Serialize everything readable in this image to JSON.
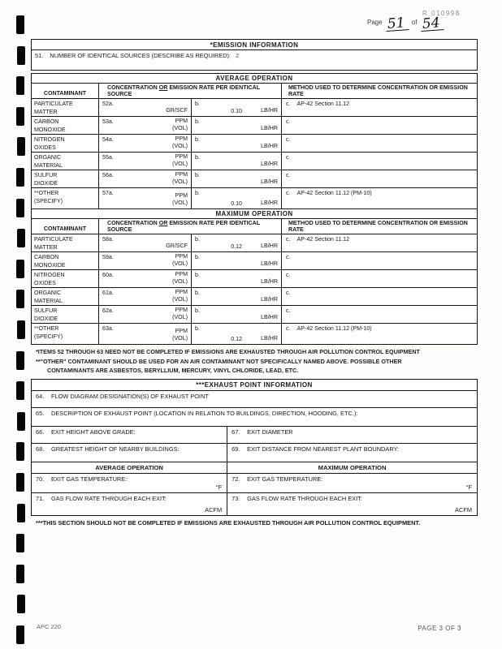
{
  "page": {
    "stamp": "R 010998",
    "page_word": "Page",
    "page_number": "51",
    "of_word": "of",
    "page_total": "54",
    "form_code": "APC 220",
    "page_footer": "PAGE 3 OF 3"
  },
  "emission_info": {
    "title": "*EMISSION INFORMATION",
    "item51_num": "51.",
    "item51_label": "NUMBER OF IDENTICAL SOURCES (DESCRIBE AS REQUIRED):",
    "item51_value": "2"
  },
  "avg_table": {
    "title": "AVERAGE OPERATION",
    "contaminant_header": "CONTAMINANT",
    "conc_header_pre": "CONCENTRATION ",
    "conc_header_or": "OR",
    "conc_header_post": " EMISSION RATE PER IDENTICAL SOURCE",
    "method_header": "METHOD USED TO DETERMINE CONCENTRATION OR EMISSION RATE",
    "rows": [
      {
        "name": "PARTICULATE\nMATTER",
        "a_label": "52a.",
        "a_unit": "GR/SCF",
        "b_label": "b.",
        "b_value": "0.10",
        "b_unit": "LB/HR",
        "c_label": "c.",
        "c_value": "AP-42 Section 11.12"
      },
      {
        "name": "CARBON\nMONOXIDE",
        "a_label": "53a.",
        "a_unit": "PPM\n(VOL)",
        "b_label": "b.",
        "b_value": "",
        "b_unit": "LB/HR",
        "c_label": "c.",
        "c_value": ""
      },
      {
        "name": "NITROGEN\nOXIDES",
        "a_label": "54a.",
        "a_unit": "PPM\n(VOL)",
        "b_label": "b.",
        "b_value": "",
        "b_unit": "LB/HR",
        "c_label": "c.",
        "c_value": ""
      },
      {
        "name": "ORGANIC\nMATERIAL",
        "a_label": "55a.",
        "a_unit": "PPM\n(VOL)",
        "b_label": "b.",
        "b_value": "",
        "b_unit": "LB/HR",
        "c_label": "c.",
        "c_value": ""
      },
      {
        "name": "SULFUR\nDIOXIDE",
        "a_label": "56a.",
        "a_unit": "PPM\n(VOL)",
        "b_label": "b.",
        "b_value": "",
        "b_unit": "LB/HR",
        "c_label": "c.",
        "c_value": ""
      },
      {
        "name": "**OTHER\n(SPECIFY)",
        "a_label": "57a.",
        "a_unit": "PPM\n(VOL)",
        "b_label": "b.",
        "b_value": "0.10",
        "b_unit": "LB/HR",
        "c_label": "c.",
        "c_value": "AP-42 Section 11.12 (PM-10)"
      }
    ]
  },
  "max_table": {
    "title": "MAXIMUM OPERATION",
    "contaminant_header": "CONTAMINANT",
    "conc_header_pre": "CONCENTRATION ",
    "conc_header_or": "OR",
    "conc_header_post": " EMISSION RATE PER IDENTICAL SOURCE",
    "method_header": "METHOD USED TO DETERMINE CONCENTRATION OR EMISSION RATE",
    "rows": [
      {
        "name": "PARTICULATE\nMATTER",
        "a_label": "58a.",
        "a_unit": "GR/SCF",
        "b_label": "b.",
        "b_value": "0.12",
        "b_unit": "LB/HR",
        "c_label": "c.",
        "c_value": "AP-42 Section 11.12"
      },
      {
        "name": "CARBON\nMONOXIDE",
        "a_label": "59a.",
        "a_unit": "PPM\n(VOL)",
        "b_label": "b.",
        "b_value": "",
        "b_unit": "LB/HR",
        "c_label": "c.",
        "c_value": ""
      },
      {
        "name": "NITROGEN\nOXIDES",
        "a_label": "60a.",
        "a_unit": "PPM\n(VOL)",
        "b_label": "b.",
        "b_value": "",
        "b_unit": "LB/HR",
        "c_label": "c.",
        "c_value": ""
      },
      {
        "name": "ORGANIC\nMATERIAL",
        "a_label": "61a.",
        "a_unit": "PPM\n(VOL)",
        "b_label": "b.",
        "b_value": "",
        "b_unit": "LB/HR",
        "c_label": "c.",
        "c_value": ""
      },
      {
        "name": "SULFUR\nDIOXIDE",
        "a_label": "62a.",
        "a_unit": "PPM\n(VOL)",
        "b_label": "b.",
        "b_value": "",
        "b_unit": "LB/HR",
        "c_label": "c.",
        "c_value": ""
      },
      {
        "name": "**OTHER\n(SPECIFY)",
        "a_label": "63a.",
        "a_unit": "PPM\n(VOL)",
        "b_label": "b.",
        "b_value": "0.12",
        "b_unit": "LB/HR",
        "c_label": "c.",
        "c_value": "AP-42 Section 11.12 (PM-10)"
      }
    ]
  },
  "footnotes": {
    "line1": "*ITEMS 52 THROUGH 63 NEED NOT BE COMPLETED IF EMISSIONS ARE EXHAUSTED THROUGH AIR POLLUTION CONTROL EQUIPMENT",
    "line2": "**\"OTHER\" CONTAMINANT SHOULD BE USED FOR AN AIR CONTAMINANT NOT SPECIFICALLY NAMED ABOVE.  POSSIBLE OTHER",
    "line3": "CONTAMINANTS ARE ASBESTOS, BERYLLIUM, MERCURY, VINYL CHLORIDE, LEAD, ETC."
  },
  "exhaust_section": {
    "title": "***EXHAUST POINT INFORMATION",
    "item64_num": "64.",
    "item64_label": "FLOW DIAGRAM DESIGNATION(S) OF EXHAUST POINT",
    "item65_num": "65.",
    "item65_label": "DESCRIPTION OF EXHAUST POINT (LOCATION IN RELATION TO BUILDINGS, DIRECTION, HOODING, ETC.):",
    "item66_num": "66.",
    "item66_label": "EXIT HEIGHT ABOVE GRADE:",
    "item67_num": "67.",
    "item67_label": "EXIT DIAMETER",
    "item68_num": "68.",
    "item68_label": "GREATEST HEIGHT OF NEARBY BUILDINGS:",
    "item69_num": "69.",
    "item69_label": "EXIT DISTANCE FROM NEAREST PLANT BOUNDARY:",
    "avg_header": "AVERAGE OPERATION",
    "max_header": "MAXIMUM OPERATION",
    "item70_num": "70.",
    "item70_label": "EXIT GAS TEMPERATURE:",
    "item70_unit": "°F",
    "item71_num": "71.",
    "item71_label": "GAS FLOW RATE THROUGH EACH EXIT:",
    "item71_unit": "ACFM",
    "item72_num": "72.",
    "item72_label": "EXIT GAS TEMPERATURE:",
    "item72_unit": "°F",
    "item73_num": "73.",
    "item73_label": "GAS FLOW RATE THROUGH EACH EXIT:",
    "item73_unit": "ACFM",
    "footnote": "***THIS SECTION SHOULD NOT BE COMPLETED IF EMISSIONS ARE EXHAUSTED THROUGH AIR POLLUTION CONTROL EQUIPMENT."
  }
}
